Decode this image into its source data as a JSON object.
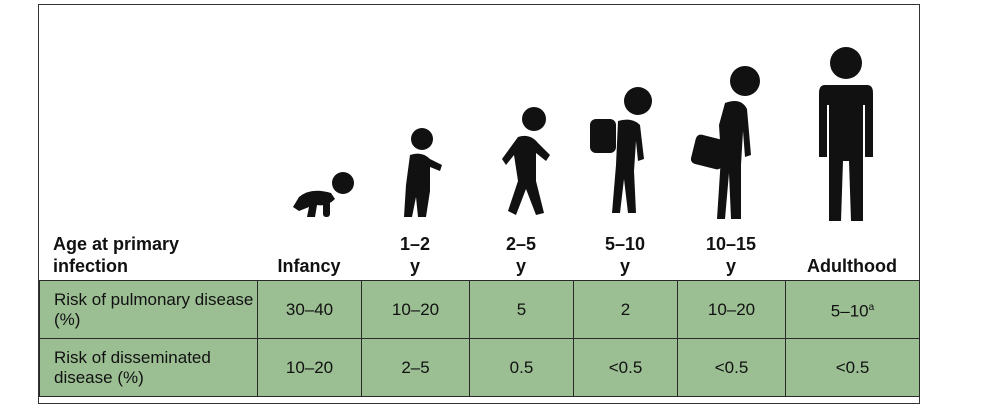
{
  "header": {
    "row_label": "Age at primary infection",
    "columns": [
      "Infancy",
      "1–2 y",
      "2–5 y",
      "5–10 y",
      "10–15 y",
      "Adulthood"
    ]
  },
  "icons": [
    "crawling-baby-icon",
    "toddler-icon",
    "walking-child-icon",
    "child-backpack-icon",
    "teen-satchel-icon",
    "adult-icon"
  ],
  "rows": [
    {
      "label": "Risk of pulmonary disease (%)",
      "values": [
        "30–40",
        "10–20",
        "5",
        "2",
        "10–20",
        "5–10"
      ],
      "last_superscript": "a"
    },
    {
      "label": "Risk of disseminated disease (%)",
      "values": [
        "10–20",
        "2–5",
        "0.5",
        "<0.5",
        "<0.5",
        "<0.5"
      ]
    }
  ],
  "colors": {
    "cell": "#9bbf93",
    "border": "#2a2a2a",
    "icon": "#111111"
  }
}
